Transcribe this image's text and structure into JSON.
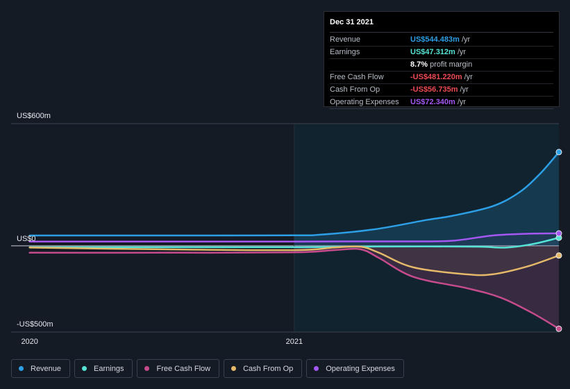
{
  "tooltip": {
    "date": "Dec 31 2021",
    "rows": [
      {
        "name": "Revenue",
        "value": "US$544.483m",
        "unit": "/yr",
        "color": "#2d9fe6"
      },
      {
        "name": "Earnings",
        "value": "US$47.312m",
        "unit": "/yr",
        "color": "#54e3d4"
      },
      {
        "name": "",
        "value": "8.7%",
        "unit": "profit margin",
        "color": "#ffffff"
      },
      {
        "name": "Free Cash Flow",
        "value": "-US$481.220m",
        "unit": "/yr",
        "color": "#ee4b54"
      },
      {
        "name": "Cash From Op",
        "value": "-US$56.735m",
        "unit": "/yr",
        "color": "#ee4b54"
      },
      {
        "name": "Operating Expenses",
        "value": "US$72.340m",
        "unit": "/yr",
        "color": "#a557f4"
      }
    ]
  },
  "legend": [
    {
      "label": "Revenue",
      "color": "#2d9fe6"
    },
    {
      "label": "Earnings",
      "color": "#54e3d4"
    },
    {
      "label": "Free Cash Flow",
      "color": "#c54b8c"
    },
    {
      "label": "Cash From Op",
      "color": "#e5b96a"
    },
    {
      "label": "Operating Expenses",
      "color": "#a557f4"
    }
  ],
  "chart_data": {
    "type": "line",
    "ylim": [
      -500,
      600
    ],
    "xlim": [
      2019.93,
      2022.0
    ],
    "y_tick_labels": [
      {
        "value": 600,
        "label": "US$600m"
      },
      {
        "value": 0,
        "label": "US$0"
      },
      {
        "value": -500,
        "label": "-US$500m"
      }
    ],
    "x_tick_labels": [
      {
        "value": 2020.0,
        "label": "2020"
      },
      {
        "value": 2021.0,
        "label": "2021"
      }
    ],
    "forecast_start": 2021.0,
    "series": [
      {
        "name": "Revenue",
        "color": "#2d9fe6",
        "x": [
          2020.0,
          2020.5,
          2021.0,
          2021.1,
          2021.3,
          2021.5,
          2021.6,
          2021.75,
          2021.85,
          2021.93,
          2022.0
        ],
        "y": [
          60,
          60,
          61,
          65,
          95,
          150,
          175,
          230,
          310,
          420,
          544
        ]
      },
      {
        "name": "Earnings",
        "color": "#54e3d4",
        "x": [
          2020.0,
          2020.5,
          2021.0,
          2021.2,
          2021.5,
          2021.7,
          2021.8,
          2021.9,
          2022.0
        ],
        "y": [
          -8,
          -8,
          -8,
          -5,
          -3,
          -5,
          -10,
          10,
          47
        ]
      },
      {
        "name": "Free Cash Flow",
        "color": "#c54b8c",
        "x": [
          2020.0,
          2020.5,
          2021.0,
          2021.15,
          2021.25,
          2021.32,
          2021.45,
          2021.65,
          2021.78,
          2021.9,
          2022.0
        ],
        "y": [
          -40,
          -40,
          -38,
          -25,
          -20,
          -70,
          -180,
          -245,
          -300,
          -390,
          -481
        ]
      },
      {
        "name": "Cash From Op",
        "color": "#e5b96a",
        "x": [
          2020.0,
          2020.5,
          2021.0,
          2021.15,
          2021.25,
          2021.32,
          2021.45,
          2021.65,
          2021.75,
          2021.88,
          2022.0
        ],
        "y": [
          -10,
          -20,
          -25,
          -10,
          -5,
          -40,
          -125,
          -165,
          -165,
          -120,
          -56
        ]
      },
      {
        "name": "Operating Expenses",
        "color": "#a557f4",
        "x": [
          2020.0,
          2020.5,
          2021.0,
          2021.2,
          2021.45,
          2021.6,
          2021.75,
          2021.88,
          2022.0
        ],
        "y": [
          25,
          25,
          25,
          26,
          26,
          30,
          60,
          70,
          72
        ]
      }
    ]
  }
}
